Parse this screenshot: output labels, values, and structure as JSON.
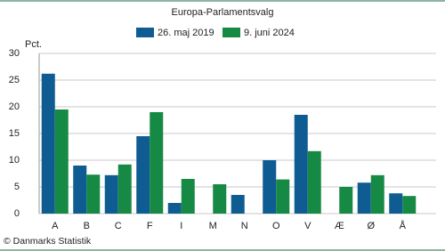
{
  "chart_data": {
    "type": "bar",
    "title": "Europa-Parlamentsvalg",
    "y_label": "Pct.",
    "source": "© Danmarks Statistik",
    "categories": [
      "A",
      "B",
      "C",
      "F",
      "I",
      "M",
      "N",
      "O",
      "V",
      "Æ",
      "Ø",
      "Å"
    ],
    "series": [
      {
        "name": "26. maj 2019",
        "color": "#0f5c92",
        "values": [
          26.2,
          9.0,
          7.2,
          14.5,
          2.0,
          null,
          3.5,
          10.0,
          18.5,
          null,
          5.8,
          3.8
        ]
      },
      {
        "name": "9. juni 2024",
        "color": "#168a45",
        "values": [
          19.5,
          7.3,
          9.2,
          19.0,
          6.5,
          5.5,
          null,
          6.4,
          11.7,
          5.0,
          7.2,
          3.3
        ]
      }
    ],
    "ylim": [
      0,
      30
    ],
    "yticks": [
      0,
      5,
      10,
      15,
      20,
      25,
      30
    ],
    "grid": true
  }
}
